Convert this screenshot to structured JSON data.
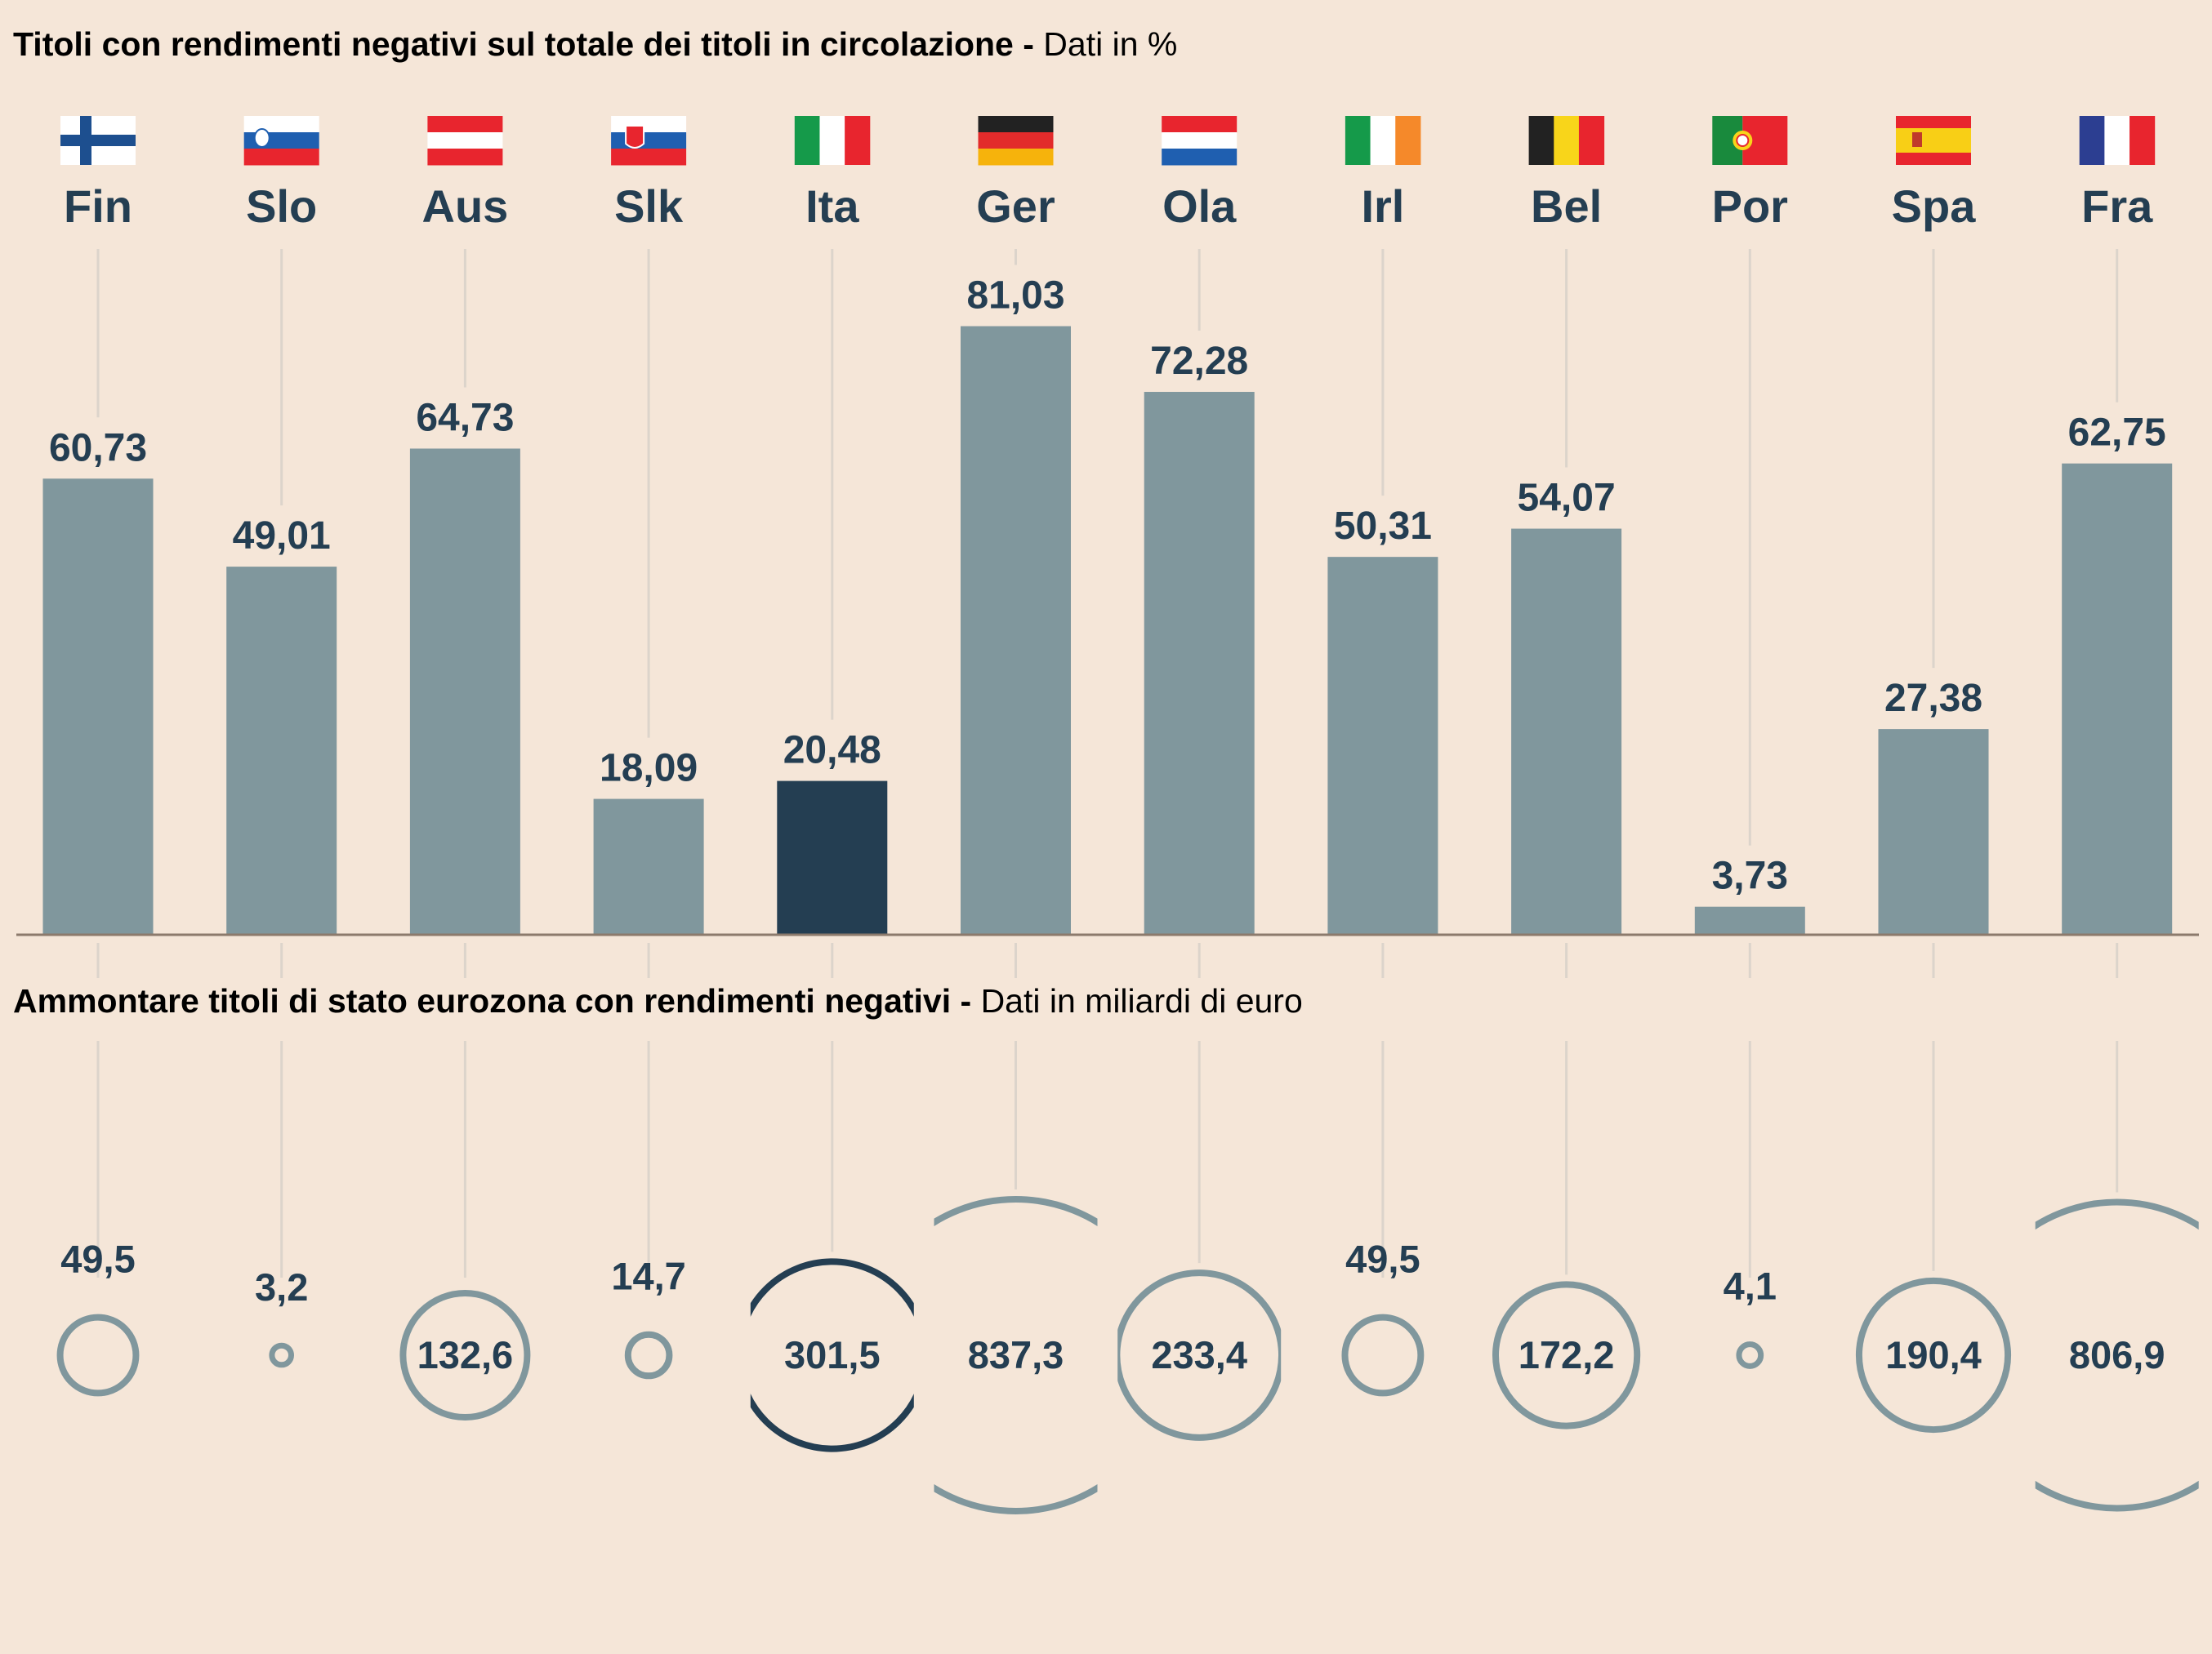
{
  "chart_data": [
    {
      "type": "bar",
      "title": "Titoli con rendimenti negativi sul totale dei titoli in circolazione",
      "subtitle": "Dati in %",
      "categories": [
        "Fin",
        "Slo",
        "Aus",
        "Slk",
        "Ita",
        "Ger",
        "Ola",
        "Irl",
        "Bel",
        "Por",
        "Spa",
        "Fra"
      ],
      "values": [
        60.73,
        49.01,
        64.73,
        18.09,
        20.48,
        81.03,
        72.28,
        50.31,
        54.07,
        3.73,
        27.38,
        62.75
      ],
      "labels": [
        "60,73",
        "49,01",
        "64,73",
        "18,09",
        "20,48",
        "81,03",
        "72,28",
        "50,31",
        "54,07",
        "3,73",
        "27,38",
        "62,75"
      ],
      "highlight": "Ita",
      "ylim": [
        0,
        100
      ],
      "grid": false
    },
    {
      "type": "bubble",
      "title": "Ammontare titoli di stato eurozona con rendimenti negativi",
      "subtitle": "Dati in miliardi di euro",
      "categories": [
        "Fin",
        "Slo",
        "Aus",
        "Slk",
        "Ita",
        "Ger",
        "Ola",
        "Irl",
        "Bel",
        "Por",
        "Spa",
        "Fra"
      ],
      "values": [
        49.5,
        3.2,
        132.6,
        14.7,
        301.5,
        837.3,
        233.4,
        49.5,
        172.2,
        4.1,
        190.4,
        806.9
      ],
      "labels": [
        "49,5",
        "3,2",
        "132,6",
        "14,7",
        "301,5",
        "837,3",
        "233,4",
        "49,5",
        "172,2",
        "4,1",
        "190,4",
        "806,9"
      ],
      "highlight": "Ita"
    }
  ],
  "flags": [
    "finland-flag",
    "slovenia-flag",
    "austria-flag",
    "slovakia-flag",
    "italy-flag",
    "germany-flag",
    "netherlands-flag",
    "ireland-flag",
    "belgium-flag",
    "portugal-flag",
    "spain-flag",
    "france-flag"
  ],
  "colors": {
    "background": "#f5e6d8",
    "bar": "#80979d",
    "highlight": "#243e52",
    "text": "#243e52",
    "guide": "#dcd4cb",
    "baseline": "#8c7a6c"
  }
}
